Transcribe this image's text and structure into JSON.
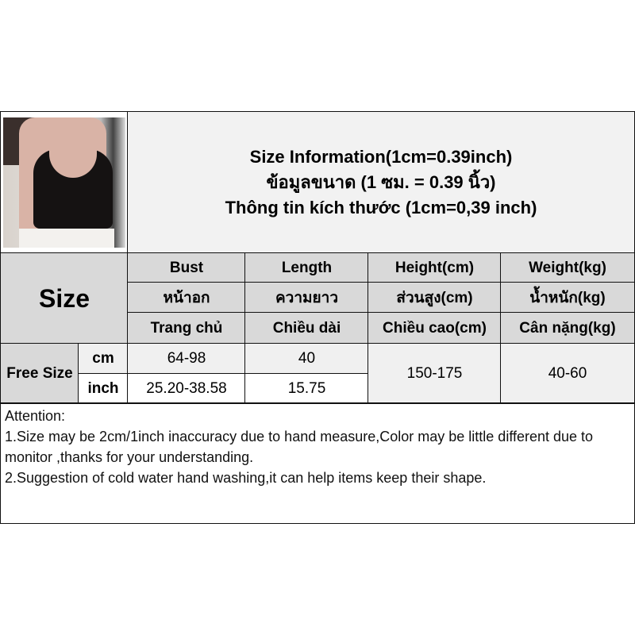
{
  "title": {
    "line1": "Size Information(1cm=0.39inch)",
    "line2": "ข้อมูลขนาด (1 ซม. = 0.39 นิ้ว)",
    "line3": "Thông tin kích thước (1cm=0,39 inch)"
  },
  "size_label": "Size",
  "columns": [
    {
      "en": "Bust",
      "th": "หน้าอก",
      "vi": "Trang chủ"
    },
    {
      "en": "Length",
      "th": "ความยาว",
      "vi": "Chiều dài"
    },
    {
      "en": "Height(cm)",
      "th": "ส่วนสูง(cm)",
      "vi": "Chiều cao(cm)"
    },
    {
      "en": "Weight(kg)",
      "th": "น้ำหนัก(kg)",
      "vi": "Cân nặng(kg)"
    }
  ],
  "row": {
    "name": "Free Size",
    "cm_label": "cm",
    "inch_label": "inch",
    "bust_cm": "64-98",
    "length_cm": "40",
    "bust_inch": "25.20-38.58",
    "length_inch": "15.75",
    "height": "150-175",
    "weight": "40-60"
  },
  "attention": {
    "heading": "Attention:",
    "line1": "1.Size may be 2cm/1inch inaccuracy due to hand measure,Color may be little different due to monitor ,thanks for your understanding.",
    "line2": "2.Suggestion of cold water hand washing,it can help items keep their shape."
  }
}
